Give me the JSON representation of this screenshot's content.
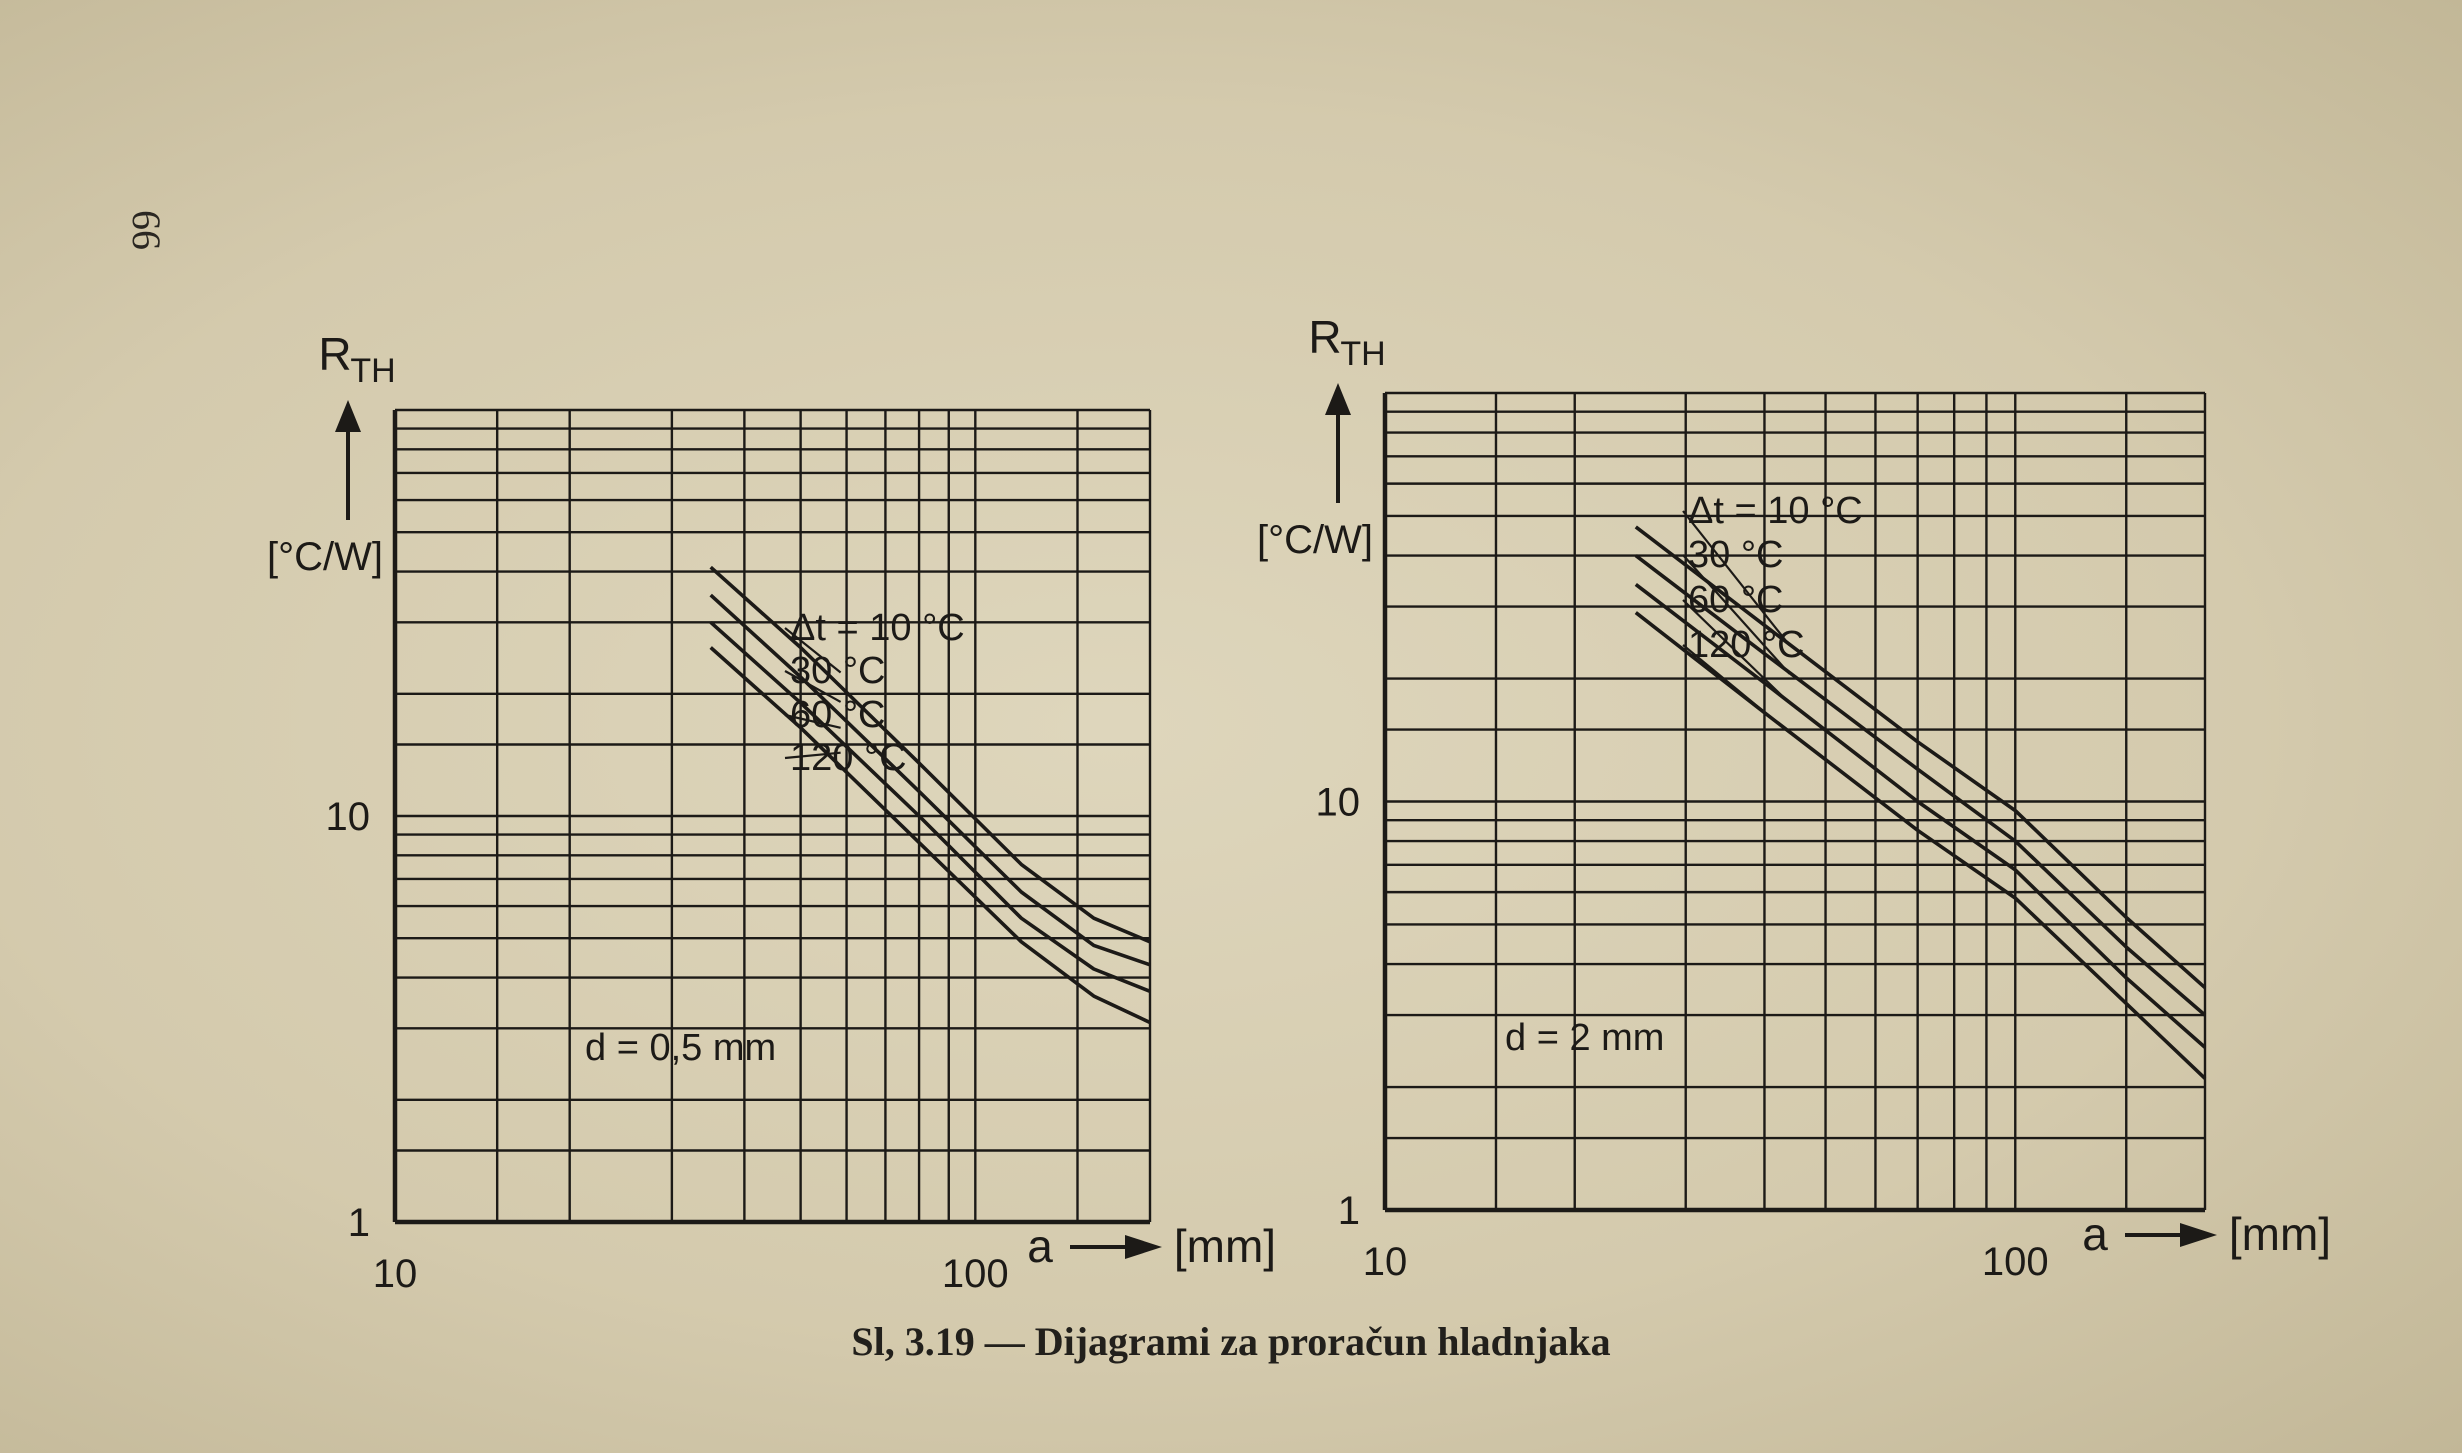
{
  "page_number": "66",
  "caption": "Sl, 3.19 — Dijagrami za proračun hladnjaka",
  "colors": {
    "ink": "#1c1a17",
    "paper": "#d8d0b4"
  },
  "chart_data": [
    {
      "type": "line",
      "scale": {
        "x": "log",
        "y": "log"
      },
      "xlim": [
        10,
        200
      ],
      "ylim": [
        1,
        100
      ],
      "x_tick_labels": [
        {
          "value": 10,
          "text": "10"
        },
        {
          "value": 100,
          "text": "100"
        }
      ],
      "y_tick_labels": [
        {
          "value": 1,
          "text": "1"
        },
        {
          "value": 10,
          "text": "10"
        }
      ],
      "ylabel": "R",
      "ylabel_sub": "TH",
      "yunit": "[°C/W]",
      "xlabel": "a",
      "xunit": "[mm]",
      "grid": true,
      "annotation": "d = 0,5 mm",
      "series_labels": [
        "Δt = 10 °C",
        "30 °C",
        "60 °C",
        "120 °C"
      ],
      "series": [
        {
          "name": "Δt = 10 °C",
          "x": [
            35,
            50,
            80,
            120,
            160,
            200
          ],
          "y": [
            41,
            26,
            13.5,
            7.6,
            5.6,
            4.9
          ]
        },
        {
          "name": "30 °C",
          "x": [
            35,
            50,
            80,
            120,
            160,
            200
          ],
          "y": [
            35,
            22,
            11.5,
            6.5,
            4.8,
            4.3
          ]
        },
        {
          "name": "60 °C",
          "x": [
            35,
            50,
            80,
            120,
            160,
            200
          ],
          "y": [
            30,
            19,
            10,
            5.6,
            4.2,
            3.7
          ]
        },
        {
          "name": "120 °C",
          "x": [
            35,
            50,
            80,
            120,
            160,
            200
          ],
          "y": [
            26,
            16.5,
            8.6,
            4.9,
            3.6,
            3.1
          ]
        }
      ]
    },
    {
      "type": "line",
      "scale": {
        "x": "log",
        "y": "log"
      },
      "xlim": [
        10,
        200
      ],
      "ylim": [
        1,
        100
      ],
      "x_tick_labels": [
        {
          "value": 10,
          "text": "10"
        },
        {
          "value": 100,
          "text": "100"
        }
      ],
      "y_tick_labels": [
        {
          "value": 1,
          "text": "1"
        },
        {
          "value": 10,
          "text": "10"
        }
      ],
      "ylabel": "R",
      "ylabel_sub": "TH",
      "yunit": "[°C/W]",
      "xlabel": "a",
      "xunit": "[mm]",
      "grid": true,
      "annotation": "d = 2 mm",
      "series_labels": [
        "Δt = 10 °C",
        "30 °C",
        "60 °C",
        "120 °C"
      ],
      "series": [
        {
          "name": "Δt = 10 °C",
          "x": [
            25,
            40,
            70,
            100,
            150,
            200
          ],
          "y": [
            47,
            27,
            14,
            9.5,
            5.2,
            3.5
          ]
        },
        {
          "name": "30 °C",
          "x": [
            25,
            40,
            70,
            100,
            150,
            200
          ],
          "y": [
            40,
            23,
            12,
            8.0,
            4.4,
            3.0
          ]
        },
        {
          "name": "60 °C",
          "x": [
            25,
            40,
            70,
            100,
            150,
            200
          ],
          "y": [
            34,
            19.5,
            10,
            6.8,
            3.7,
            2.5
          ]
        },
        {
          "name": "120 °C",
          "x": [
            25,
            40,
            70,
            100,
            150,
            200
          ],
          "y": [
            29,
            16.5,
            8.5,
            5.8,
            3.2,
            2.1
          ]
        }
      ]
    }
  ]
}
